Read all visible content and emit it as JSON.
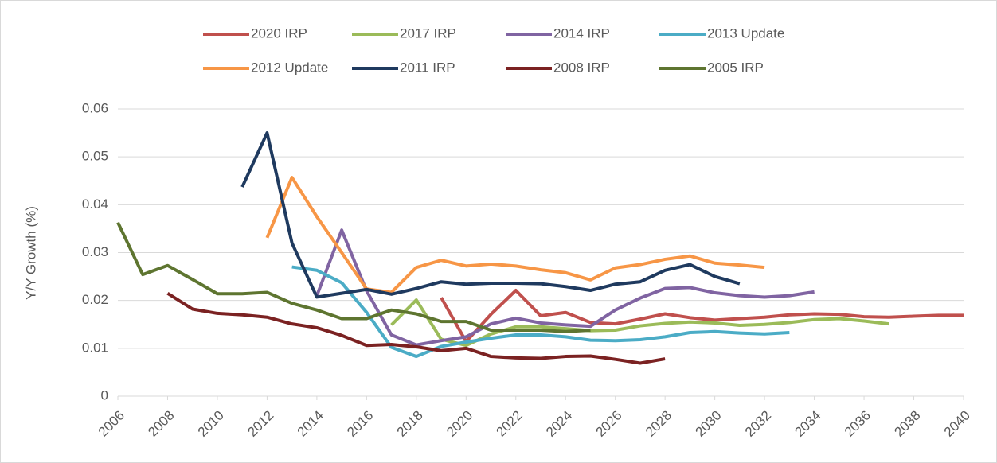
{
  "chart_data": {
    "type": "line",
    "y_label": "Y/Y Growth (%)",
    "x": [
      2006,
      2007,
      2008,
      2009,
      2010,
      2011,
      2012,
      2013,
      2014,
      2015,
      2016,
      2017,
      2018,
      2019,
      2020,
      2021,
      2022,
      2023,
      2024,
      2025,
      2026,
      2027,
      2028,
      2029,
      2030,
      2031,
      2032,
      2033,
      2034,
      2035,
      2036,
      2037,
      2038,
      2039,
      2040
    ],
    "xlim": [
      2006,
      2040
    ],
    "xticks": [
      2006,
      2008,
      2010,
      2012,
      2014,
      2016,
      2018,
      2020,
      2022,
      2024,
      2026,
      2028,
      2030,
      2032,
      2034,
      2036,
      2038,
      2040
    ],
    "ylim": [
      0,
      0.06
    ],
    "yticks": [
      0,
      0.01,
      0.02,
      0.03,
      0.04,
      0.05,
      0.06
    ],
    "grid": true,
    "legend": "top",
    "series": [
      {
        "name": "2020 IRP",
        "color": "#c0504d",
        "values": [
          null,
          null,
          null,
          null,
          null,
          null,
          null,
          null,
          null,
          null,
          null,
          null,
          null,
          0.0206,
          0.0114,
          0.0171,
          0.0221,
          0.0168,
          0.0175,
          0.0154,
          0.0151,
          0.0161,
          0.0172,
          0.0164,
          0.0159,
          0.0162,
          0.0165,
          0.017,
          0.0172,
          0.0171,
          0.0166,
          0.0165,
          0.0167,
          0.0169,
          0.0169
        ]
      },
      {
        "name": "2017 IRP",
        "color": "#9bbb59",
        "values": [
          null,
          null,
          null,
          null,
          null,
          null,
          null,
          null,
          null,
          null,
          null,
          0.0149,
          0.0201,
          0.0119,
          0.0106,
          0.013,
          0.0145,
          0.0145,
          0.0141,
          0.0137,
          0.0138,
          0.0147,
          0.0152,
          0.0155,
          0.0153,
          0.0148,
          0.015,
          0.0154,
          0.016,
          0.0162,
          0.0157,
          0.0151,
          null,
          null,
          null
        ]
      },
      {
        "name": "2014 IRP",
        "color": "#8064a2",
        "values": [
          null,
          null,
          null,
          null,
          null,
          null,
          null,
          null,
          0.021,
          0.0347,
          0.022,
          0.0128,
          0.0107,
          0.0116,
          0.0124,
          0.0151,
          0.0163,
          0.0153,
          0.0149,
          0.0146,
          0.018,
          0.0205,
          0.0225,
          0.0227,
          0.0216,
          0.021,
          0.0207,
          0.021,
          0.0218,
          null,
          null,
          null,
          null,
          null,
          null
        ]
      },
      {
        "name": "2013 Update",
        "color": "#4bacc6",
        "values": [
          null,
          null,
          null,
          null,
          null,
          null,
          null,
          0.027,
          0.0263,
          0.0237,
          0.0175,
          0.0102,
          0.0083,
          0.0104,
          0.0113,
          0.0121,
          0.0128,
          0.0128,
          0.0124,
          0.0117,
          0.0116,
          0.0118,
          0.0124,
          0.0133,
          0.0135,
          0.0132,
          0.013,
          0.0133,
          null,
          null,
          null,
          null,
          null,
          null,
          null
        ]
      },
      {
        "name": "2012 Update",
        "color": "#f79646",
        "values": [
          null,
          null,
          null,
          null,
          null,
          null,
          0.0331,
          0.0457,
          0.0375,
          0.03,
          0.0224,
          0.0217,
          0.0269,
          0.0284,
          0.0272,
          0.0276,
          0.0272,
          0.0264,
          0.0258,
          0.0243,
          0.0268,
          0.0275,
          0.0286,
          0.0293,
          0.0278,
          0.0274,
          0.0269,
          null,
          null,
          null,
          null,
          null,
          null,
          null,
          null
        ]
      },
      {
        "name": "2011 IRP",
        "color": "#1f3a5f",
        "values": [
          null,
          null,
          null,
          null,
          null,
          0.0437,
          0.055,
          0.032,
          0.0207,
          0.0215,
          0.0223,
          0.0213,
          0.0225,
          0.0239,
          0.0234,
          0.0236,
          0.0236,
          0.0235,
          0.0229,
          0.0221,
          0.0234,
          0.0239,
          0.0263,
          0.0275,
          0.025,
          0.0235,
          null,
          null,
          null,
          null,
          null,
          null,
          null,
          null,
          null
        ]
      },
      {
        "name": "2008 IRP",
        "color": "#7b2222",
        "values": [
          null,
          null,
          0.0215,
          0.0182,
          0.0173,
          0.017,
          0.0165,
          0.0151,
          0.0143,
          0.0127,
          0.0106,
          0.0108,
          0.0103,
          0.0095,
          0.01,
          0.0083,
          0.008,
          0.0079,
          0.0083,
          0.0084,
          0.0077,
          0.0069,
          0.0078,
          null,
          null,
          null,
          null,
          null,
          null,
          null,
          null,
          null,
          null,
          null,
          null
        ]
      },
      {
        "name": "2005 IRP",
        "color": "#5e7530",
        "values": [
          0.0363,
          0.0254,
          0.0273,
          0.0244,
          0.0214,
          0.0214,
          0.0217,
          0.0194,
          0.018,
          0.0162,
          0.0162,
          0.018,
          0.0172,
          0.0156,
          0.0156,
          0.0138,
          0.0138,
          0.0138,
          0.0135,
          0.0138,
          null,
          null,
          null,
          null,
          null,
          null,
          null,
          null,
          null,
          null,
          null,
          null,
          null,
          null,
          null
        ]
      }
    ]
  }
}
